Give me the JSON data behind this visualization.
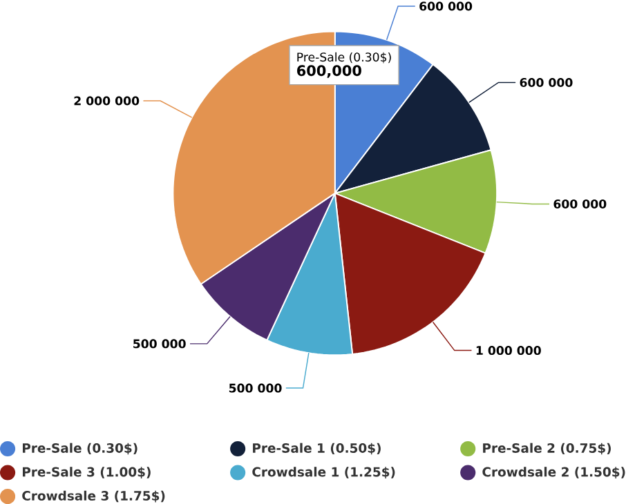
{
  "chart_data": {
    "type": "pie",
    "categories": [
      "Pre-Sale (0.30$)",
      "Pre-Sale 1 (0.50$)",
      "Pre-Sale 2 (0.75$)",
      "Pre-Sale 3 (1.00$)",
      "Crowdsale 1 (1.25$)",
      "Crowdsale 2 (1.50$)",
      "Crowdsale 3 (1.75$)"
    ],
    "values": [
      600000,
      600000,
      600000,
      1000000,
      500000,
      500000,
      2000000
    ],
    "value_labels": [
      "600 000",
      "600 000",
      "600 000",
      "1 000 000",
      "500 000",
      "500 000",
      "2 000 000"
    ],
    "colors": [
      "#4a7fd4",
      "#13213a",
      "#92bb45",
      "#8b1a12",
      "#4aabcf",
      "#4b2c6d",
      "#e39350"
    ],
    "annotations": [
      "Pre-Sale (0.30$)",
      "600,000"
    ],
    "legend": "bottom"
  }
}
